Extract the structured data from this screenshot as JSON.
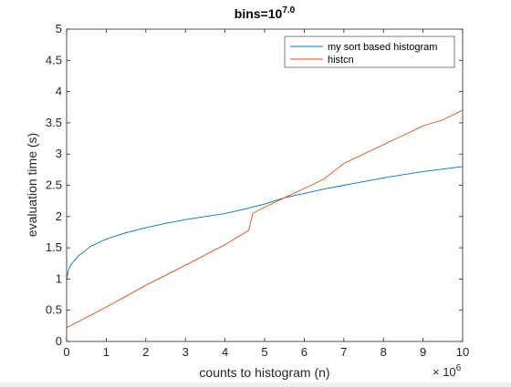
{
  "chart_data": {
    "type": "line",
    "title": {
      "base": "bins=10",
      "superscript": "7.0"
    },
    "xlabel": "counts to histogram (n)",
    "ylabel": "evaluation time (s)",
    "x_multiplier": {
      "base": "× 10",
      "exponent": "6"
    },
    "xlim": [
      0,
      10
    ],
    "ylim": [
      0,
      5
    ],
    "x_ticks": [
      "0",
      "1",
      "2",
      "3",
      "4",
      "5",
      "6",
      "7",
      "8",
      "9",
      "10"
    ],
    "y_ticks": [
      "0",
      "0.5",
      "1",
      "1.5",
      "2",
      "2.5",
      "3",
      "3.5",
      "4",
      "4.5",
      "5"
    ],
    "grid": false,
    "legend_position": "top-right",
    "series": [
      {
        "name": "my sort based histogram",
        "color": "#0072BD",
        "x": [
          0,
          0.05,
          0.1,
          0.2,
          0.3,
          0.4,
          0.5,
          0.6,
          0.8,
          1.0,
          1.5,
          2.0,
          2.5,
          3.0,
          3.5,
          4.0,
          4.5,
          5.0,
          5.5,
          6.0,
          6.5,
          7.0,
          7.5,
          8.0,
          8.5,
          9.0,
          9.5,
          10.0
        ],
        "values": [
          1.0,
          1.15,
          1.22,
          1.3,
          1.37,
          1.42,
          1.47,
          1.52,
          1.58,
          1.64,
          1.74,
          1.82,
          1.89,
          1.95,
          2.0,
          2.05,
          2.12,
          2.2,
          2.3,
          2.37,
          2.44,
          2.5,
          2.56,
          2.62,
          2.67,
          2.72,
          2.76,
          2.8
        ]
      },
      {
        "name": "histcn",
        "color": "#D95319",
        "x": [
          0,
          1.0,
          2.0,
          3.0,
          4.0,
          4.6,
          4.7,
          5.0,
          5.5,
          6.0,
          6.5,
          6.8,
          7.0,
          7.5,
          8.0,
          8.5,
          9.0,
          9.5,
          10.0
        ],
        "values": [
          0.22,
          0.55,
          0.9,
          1.22,
          1.55,
          1.78,
          2.05,
          2.15,
          2.3,
          2.45,
          2.6,
          2.75,
          2.85,
          3.0,
          3.15,
          3.3,
          3.45,
          3.55,
          3.7
        ]
      }
    ]
  }
}
